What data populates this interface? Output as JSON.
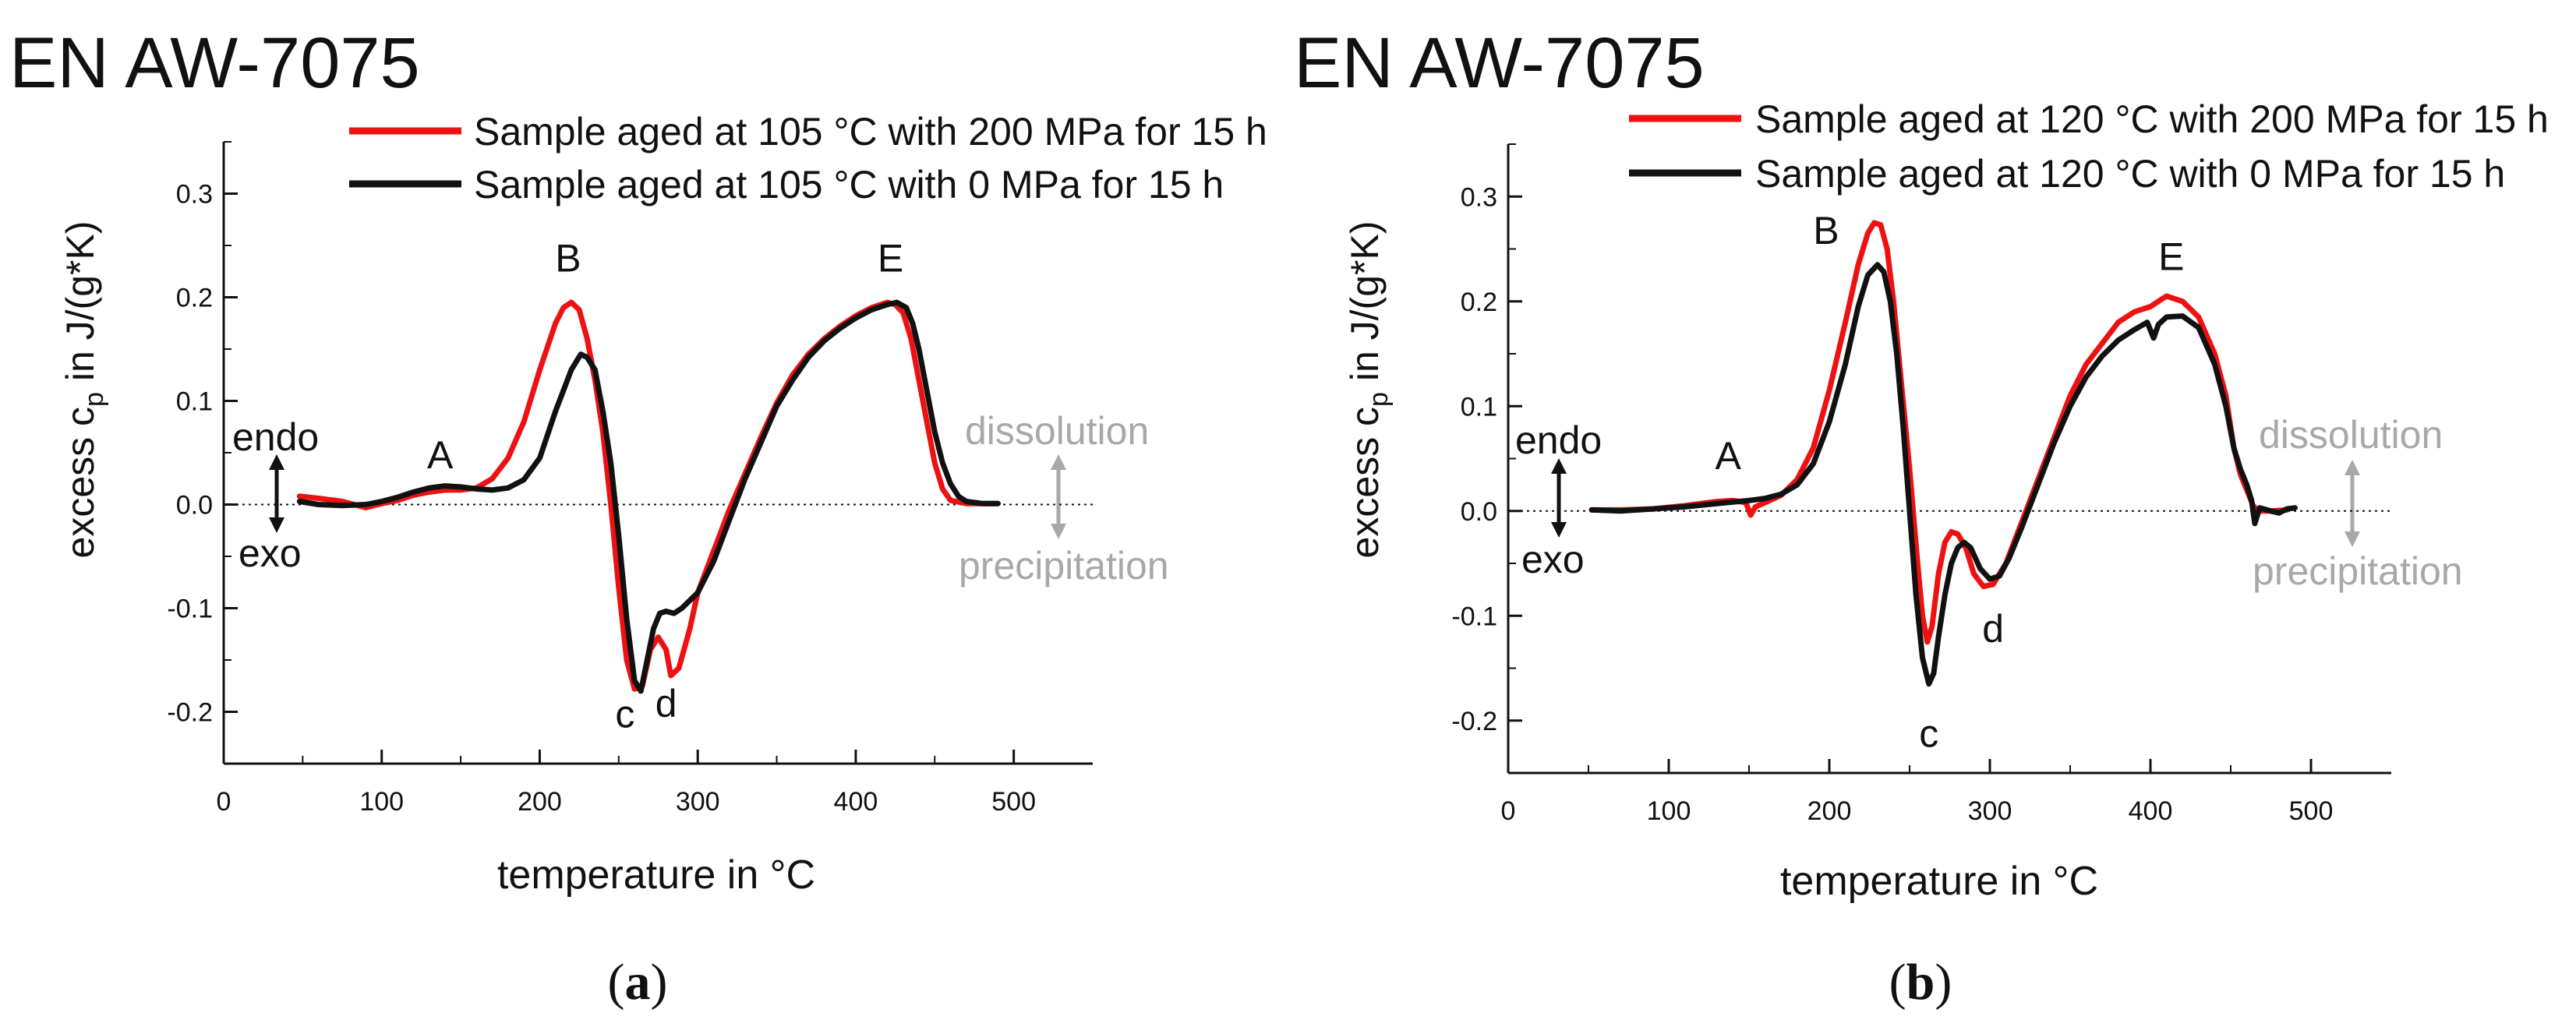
{
  "chart_data": [
    {
      "panel_label": "(a)",
      "panel_letter": "a",
      "type": "line",
      "title": "EN AW-7075",
      "xlabel": "temperature in °C",
      "ylabel_main": "excess c",
      "ylabel_sub": "p",
      "ylabel_tail": " in J/(g*K)",
      "xlim": [
        0,
        550
      ],
      "ylim": [
        -0.25,
        0.35
      ],
      "xticks": [
        0,
        100,
        200,
        300,
        400,
        500
      ],
      "xtick_labels": [
        "0",
        "100",
        "200",
        "300",
        "400",
        "500"
      ],
      "yticks": [
        -0.2,
        -0.1,
        0.0,
        0.1,
        0.2,
        0.3
      ],
      "ytick_labels": [
        "-0.2",
        "-0.1",
        "0.0",
        "0.1",
        "0.2",
        "0.3"
      ],
      "grid": false,
      "legend_position": "top-right",
      "series": [
        {
          "name": "Sample aged at 105 °C with 200 MPa for 15 h",
          "color": "#ee1111",
          "points": [
            [
              48,
              0.008
            ],
            [
              60,
              0.006
            ],
            [
              75,
              0.003
            ],
            [
              90,
              -0.003
            ],
            [
              100,
              0.001
            ],
            [
              110,
              0.004
            ],
            [
              120,
              0.009
            ],
            [
              130,
              0.012
            ],
            [
              140,
              0.014
            ],
            [
              150,
              0.014
            ],
            [
              160,
              0.016
            ],
            [
              170,
              0.025
            ],
            [
              180,
              0.045
            ],
            [
              190,
              0.08
            ],
            [
              200,
              0.13
            ],
            [
              210,
              0.175
            ],
            [
              215,
              0.19
            ],
            [
              220,
              0.195
            ],
            [
              225,
              0.188
            ],
            [
              230,
              0.16
            ],
            [
              235,
              0.12
            ],
            [
              240,
              0.07
            ],
            [
              245,
              0.0
            ],
            [
              250,
              -0.08
            ],
            [
              255,
              -0.15
            ],
            [
              260,
              -0.178
            ],
            [
              265,
              -0.175
            ],
            [
              270,
              -0.14
            ],
            [
              275,
              -0.128
            ],
            [
              280,
              -0.14
            ],
            [
              283,
              -0.165
            ],
            [
              288,
              -0.158
            ],
            [
              295,
              -0.12
            ],
            [
              300,
              -0.085
            ],
            [
              310,
              -0.045
            ],
            [
              320,
              -0.005
            ],
            [
              330,
              0.03
            ],
            [
              340,
              0.065
            ],
            [
              350,
              0.098
            ],
            [
              360,
              0.125
            ],
            [
              370,
              0.145
            ],
            [
              380,
              0.16
            ],
            [
              390,
              0.172
            ],
            [
              400,
              0.182
            ],
            [
              410,
              0.19
            ],
            [
              420,
              0.195
            ],
            [
              425,
              0.193
            ],
            [
              430,
              0.185
            ],
            [
              435,
              0.16
            ],
            [
              440,
              0.12
            ],
            [
              445,
              0.08
            ],
            [
              450,
              0.04
            ],
            [
              455,
              0.015
            ],
            [
              460,
              0.004
            ],
            [
              470,
              0.001
            ],
            [
              480,
              0.001
            ],
            [
              490,
              0.001
            ]
          ]
        },
        {
          "name": "Sample aged at 105 °C with 0 MPa for 15 h",
          "color": "#111111",
          "points": [
            [
              48,
              0.003
            ],
            [
              60,
              0.0
            ],
            [
              75,
              -0.001
            ],
            [
              90,
              0.0
            ],
            [
              100,
              0.003
            ],
            [
              110,
              0.007
            ],
            [
              120,
              0.012
            ],
            [
              130,
              0.016
            ],
            [
              140,
              0.018
            ],
            [
              150,
              0.017
            ],
            [
              160,
              0.015
            ],
            [
              170,
              0.014
            ],
            [
              180,
              0.016
            ],
            [
              190,
              0.024
            ],
            [
              200,
              0.045
            ],
            [
              210,
              0.09
            ],
            [
              220,
              0.13
            ],
            [
              226,
              0.145
            ],
            [
              230,
              0.142
            ],
            [
              235,
              0.13
            ],
            [
              240,
              0.09
            ],
            [
              245,
              0.04
            ],
            [
              250,
              -0.03
            ],
            [
              255,
              -0.11
            ],
            [
              260,
              -0.17
            ],
            [
              264,
              -0.18
            ],
            [
              268,
              -0.15
            ],
            [
              272,
              -0.12
            ],
            [
              276,
              -0.105
            ],
            [
              280,
              -0.103
            ],
            [
              285,
              -0.105
            ],
            [
              290,
              -0.1
            ],
            [
              300,
              -0.085
            ],
            [
              310,
              -0.055
            ],
            [
              320,
              -0.015
            ],
            [
              330,
              0.025
            ],
            [
              340,
              0.06
            ],
            [
              350,
              0.095
            ],
            [
              360,
              0.12
            ],
            [
              370,
              0.142
            ],
            [
              380,
              0.158
            ],
            [
              390,
              0.17
            ],
            [
              400,
              0.18
            ],
            [
              410,
              0.188
            ],
            [
              420,
              0.193
            ],
            [
              426,
              0.195
            ],
            [
              432,
              0.19
            ],
            [
              436,
              0.175
            ],
            [
              440,
              0.15
            ],
            [
              445,
              0.11
            ],
            [
              450,
              0.07
            ],
            [
              455,
              0.04
            ],
            [
              460,
              0.02
            ],
            [
              465,
              0.008
            ],
            [
              470,
              0.003
            ],
            [
              480,
              0.001
            ],
            [
              490,
              0.001
            ]
          ]
        }
      ],
      "annotations": [
        {
          "text": "A",
          "x": 137,
          "y": 0.035
        },
        {
          "text": "B",
          "x": 218,
          "y": 0.225
        },
        {
          "text": "c",
          "x": 254,
          "y": -0.215
        },
        {
          "text": "d",
          "x": 280,
          "y": -0.205
        },
        {
          "text": "E",
          "x": 422,
          "y": 0.225
        }
      ],
      "side_labels": {
        "endo": "endo",
        "exo": "exo",
        "dissolution": "dissolution",
        "precipitation": "precipitation"
      }
    },
    {
      "panel_label": "(b)",
      "panel_letter": "b",
      "type": "line",
      "title": "EN AW-7075",
      "xlabel": "temperature in °C",
      "ylabel_main": "excess c",
      "ylabel_sub": "p",
      "ylabel_tail": " in J/(g*K)",
      "xlim": [
        0,
        550
      ],
      "ylim": [
        -0.25,
        0.35
      ],
      "xticks": [
        0,
        100,
        200,
        300,
        400,
        500
      ],
      "xtick_labels": [
        "0",
        "100",
        "200",
        "300",
        "400",
        "500"
      ],
      "yticks": [
        -0.2,
        -0.1,
        0.0,
        0.1,
        0.2,
        0.3
      ],
      "ytick_labels": [
        "-0.2",
        "-0.1",
        "0.0",
        "0.1",
        "0.2",
        "0.3"
      ],
      "grid": false,
      "legend_position": "top-right",
      "series": [
        {
          "name": "Sample aged at 120 °C with 200 MPa for 15 h",
          "color": "#ee1111",
          "points": [
            [
              52,
              0.001
            ],
            [
              70,
              0.001
            ],
            [
              90,
              0.002
            ],
            [
              110,
              0.005
            ],
            [
              130,
              0.009
            ],
            [
              140,
              0.01
            ],
            [
              148,
              0.008
            ],
            [
              151,
              -0.004
            ],
            [
              154,
              0.004
            ],
            [
              160,
              0.008
            ],
            [
              170,
              0.015
            ],
            [
              180,
              0.03
            ],
            [
              190,
              0.06
            ],
            [
              200,
              0.115
            ],
            [
              210,
              0.18
            ],
            [
              218,
              0.235
            ],
            [
              224,
              0.265
            ],
            [
              228,
              0.275
            ],
            [
              232,
              0.273
            ],
            [
              236,
              0.25
            ],
            [
              240,
              0.2
            ],
            [
              245,
              0.12
            ],
            [
              250,
              0.04
            ],
            [
              255,
              -0.05
            ],
            [
              258,
              -0.1
            ],
            [
              261,
              -0.125
            ],
            [
              264,
              -0.11
            ],
            [
              268,
              -0.06
            ],
            [
              272,
              -0.03
            ],
            [
              276,
              -0.02
            ],
            [
              280,
              -0.022
            ],
            [
              285,
              -0.035
            ],
            [
              290,
              -0.06
            ],
            [
              296,
              -0.072
            ],
            [
              302,
              -0.07
            ],
            [
              310,
              -0.05
            ],
            [
              320,
              -0.01
            ],
            [
              330,
              0.03
            ],
            [
              340,
              0.07
            ],
            [
              350,
              0.11
            ],
            [
              360,
              0.14
            ],
            [
              370,
              0.16
            ],
            [
              380,
              0.18
            ],
            [
              390,
              0.19
            ],
            [
              400,
              0.195
            ],
            [
              410,
              0.205
            ],
            [
              420,
              0.2
            ],
            [
              430,
              0.185
            ],
            [
              440,
              0.15
            ],
            [
              447,
              0.11
            ],
            [
              452,
              0.06
            ],
            [
              456,
              0.035
            ],
            [
              460,
              0.02
            ],
            [
              464,
              0.005
            ],
            [
              467,
              0.0
            ],
            [
              475,
              0.0
            ],
            [
              485,
              0.001
            ]
          ]
        },
        {
          "name": "Sample aged at 120 °C with 0 MPa for 15 h",
          "color": "#111111",
          "points": [
            [
              52,
              0.001
            ],
            [
              70,
              0.0
            ],
            [
              90,
              0.002
            ],
            [
              110,
              0.004
            ],
            [
              130,
              0.007
            ],
            [
              150,
              0.01
            ],
            [
              160,
              0.012
            ],
            [
              170,
              0.016
            ],
            [
              180,
              0.025
            ],
            [
              190,
              0.045
            ],
            [
              200,
              0.085
            ],
            [
              210,
              0.14
            ],
            [
              218,
              0.195
            ],
            [
              224,
              0.225
            ],
            [
              230,
              0.235
            ],
            [
              234,
              0.228
            ],
            [
              238,
              0.2
            ],
            [
              242,
              0.15
            ],
            [
              246,
              0.08
            ],
            [
              250,
              0.0
            ],
            [
              254,
              -0.08
            ],
            [
              258,
              -0.14
            ],
            [
              262,
              -0.165
            ],
            [
              265,
              -0.155
            ],
            [
              268,
              -0.12
            ],
            [
              272,
              -0.08
            ],
            [
              276,
              -0.05
            ],
            [
              280,
              -0.035
            ],
            [
              284,
              -0.03
            ],
            [
              288,
              -0.035
            ],
            [
              294,
              -0.055
            ],
            [
              300,
              -0.065
            ],
            [
              306,
              -0.062
            ],
            [
              312,
              -0.045
            ],
            [
              320,
              -0.015
            ],
            [
              330,
              0.025
            ],
            [
              340,
              0.065
            ],
            [
              350,
              0.1
            ],
            [
              360,
              0.128
            ],
            [
              370,
              0.148
            ],
            [
              380,
              0.163
            ],
            [
              390,
              0.173
            ],
            [
              398,
              0.18
            ],
            [
              402,
              0.165
            ],
            [
              405,
              0.178
            ],
            [
              410,
              0.185
            ],
            [
              420,
              0.186
            ],
            [
              430,
              0.175
            ],
            [
              440,
              0.14
            ],
            [
              447,
              0.1
            ],
            [
              452,
              0.06
            ],
            [
              456,
              0.04
            ],
            [
              460,
              0.025
            ],
            [
              463,
              0.01
            ],
            [
              465,
              -0.012
            ],
            [
              468,
              0.003
            ],
            [
              475,
              0.0
            ],
            [
              480,
              -0.002
            ],
            [
              485,
              0.002
            ],
            [
              490,
              0.003
            ]
          ]
        }
      ],
      "annotations": [
        {
          "text": "A",
          "x": 137,
          "y": 0.04
        },
        {
          "text": "B",
          "x": 198,
          "y": 0.255
        },
        {
          "text": "c",
          "x": 262,
          "y": -0.225
        },
        {
          "text": "d",
          "x": 302,
          "y": -0.125
        },
        {
          "text": "E",
          "x": 413,
          "y": 0.23
        }
      ],
      "side_labels": {
        "endo": "endo",
        "exo": "exo",
        "dissolution": "dissolution",
        "precipitation": "precipitation"
      }
    }
  ]
}
